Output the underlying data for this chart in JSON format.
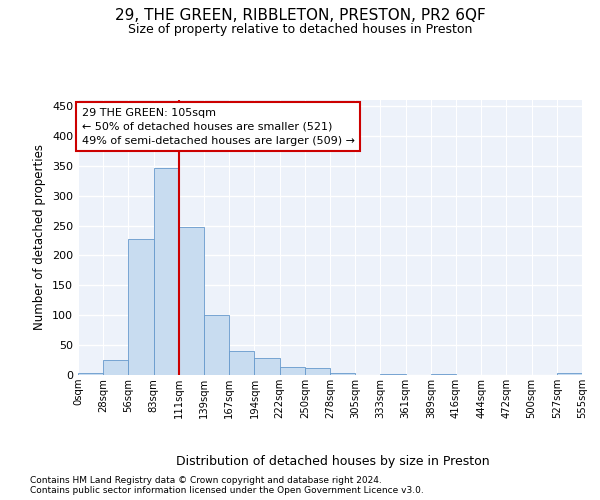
{
  "title": "29, THE GREEN, RIBBLETON, PRESTON, PR2 6QF",
  "subtitle": "Size of property relative to detached houses in Preston",
  "xlabel": "Distribution of detached houses by size in Preston",
  "ylabel": "Number of detached properties",
  "footnote1": "Contains HM Land Registry data © Crown copyright and database right 2024.",
  "footnote2": "Contains public sector information licensed under the Open Government Licence v3.0.",
  "annotation_line1": "29 THE GREEN: 105sqm",
  "annotation_line2": "← 50% of detached houses are smaller (521)",
  "annotation_line3": "49% of semi-detached houses are larger (509) →",
  "bar_color": "#c8dcf0",
  "bar_edge_color": "#6699cc",
  "vline_color": "#cc0000",
  "vline_bin": 4,
  "background_color": "#edf2fa",
  "ylim": [
    0,
    460
  ],
  "yticks": [
    0,
    50,
    100,
    150,
    200,
    250,
    300,
    350,
    400,
    450
  ],
  "bin_labels": [
    "0sqm",
    "28sqm",
    "56sqm",
    "83sqm",
    "111sqm",
    "139sqm",
    "167sqm",
    "194sqm",
    "222sqm",
    "250sqm",
    "278sqm",
    "305sqm",
    "333sqm",
    "361sqm",
    "389sqm",
    "416sqm",
    "444sqm",
    "472sqm",
    "500sqm",
    "527sqm",
    "555sqm"
  ],
  "bar_heights": [
    3,
    25,
    228,
    347,
    248,
    101,
    40,
    29,
    14,
    11,
    4,
    0,
    1,
    0,
    2,
    0,
    0,
    0,
    0,
    3
  ],
  "num_bins": 20
}
